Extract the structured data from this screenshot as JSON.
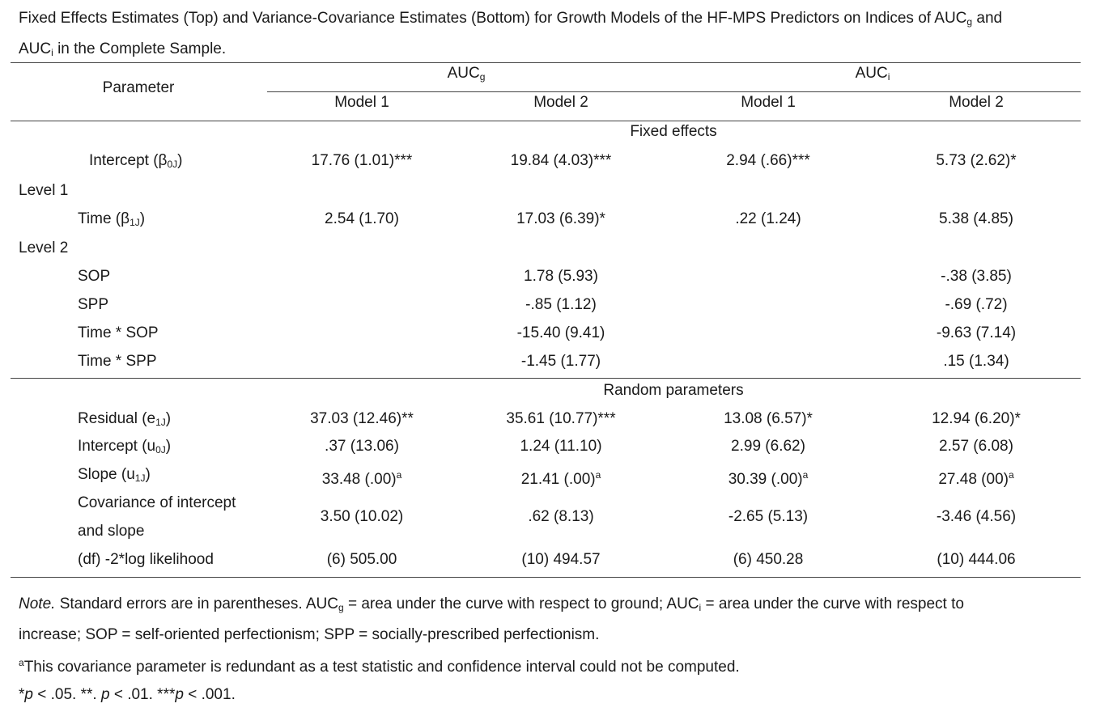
{
  "caption": {
    "part1": "Fixed Effects Estimates (Top) and Variance-Covariance Estimates (Bottom) for Growth Models of the HF-MPS Predictors on Indices of AUC",
    "sub1": "g",
    "part2": " and",
    "part3": "AUC",
    "sub2": "i",
    "part4": " in the Complete Sample."
  },
  "header": {
    "parameter": "Parameter",
    "group_g": {
      "base": "AUC",
      "sub": "g"
    },
    "group_i": {
      "base": "AUC",
      "sub": "i"
    },
    "model1": "Model 1",
    "model2": "Model 2"
  },
  "sections": {
    "fixed": "Fixed effects",
    "random": "Random parameters",
    "level1": "Level 1",
    "level2": "Level 2"
  },
  "rows": [
    {
      "label": "Intercept (β",
      "label_sub": "0J",
      "label_end": ")",
      "cells": [
        "17.76 (1.01)***",
        "19.84 (4.03)***",
        "2.94 (.66)***",
        "5.73 (2.62)*"
      ]
    },
    {
      "label": "Time (β",
      "label_sub": "1J",
      "label_end": ")",
      "cells": [
        "2.54 (1.70)",
        "17.03 (6.39)*",
        ".22 (1.24)",
        "5.38 (4.85)"
      ]
    },
    {
      "label": "SOP",
      "cells": [
        "",
        "1.78 (5.93)",
        "",
        "-.38 (3.85)"
      ]
    },
    {
      "label": "SPP",
      "cells": [
        "",
        "-.85 (1.12)",
        "",
        "-.69 (.72)"
      ]
    },
    {
      "label": "Time * SOP",
      "cells": [
        "",
        "-15.40 (9.41)",
        "",
        "-9.63 (7.14)"
      ]
    },
    {
      "label": "Time * SPP",
      "cells": [
        "",
        "-1.45 (1.77)",
        "",
        ".15 (1.34)"
      ]
    },
    {
      "label": "Residual (e",
      "label_sub": "1J",
      "label_end": ")",
      "cells": [
        "37.03 (12.46)**",
        "35.61 (10.77)***",
        "13.08 (6.57)*",
        "12.94 (6.20)*"
      ]
    },
    {
      "label": "Intercept (u",
      "label_sub": "0J",
      "label_end": ")",
      "cells": [
        ".37 (13.06)",
        "1.24 (11.10)",
        "2.99 (6.62)",
        "2.57 (6.08)"
      ]
    },
    {
      "label": "Slope (u",
      "label_sub": "1J",
      "label_end": ")",
      "cells": [
        "33.48 (.00)",
        "21.41 (.00)",
        "30.39 (.00)",
        "27.48 (00)"
      ],
      "cell_sup": "a"
    },
    {
      "label": "Covariance of intercept",
      "label2": "and slope",
      "cells": [
        "3.50 (10.02)",
        ".62 (8.13)",
        "-2.65 (5.13)",
        "-3.46 (4.56)"
      ]
    },
    {
      "label": "(df) -2*log likelihood",
      "cells": [
        "(6) 505.00",
        "(10) 494.57",
        "(6) 450.28",
        "(10) 444.06"
      ]
    }
  ],
  "notes": {
    "note_label": "Note.",
    "note_a": " Standard errors are in parentheses. AUC",
    "note_sub_g": "g",
    "note_b": " = area under the curve with respect to ground; AUC",
    "note_sub_i": "i",
    "note_c": " = area under the curve with respect to",
    "note_d": "increase; SOP = self-oriented perfectionism; SPP = socially-prescribed perfectionism.",
    "footnote_sup": "a",
    "footnote_text": "This covariance parameter is redundant as a test statistic and confidence interval could not be computed.",
    "sig_1": "*",
    "sig_p1": "p",
    "sig_2": " < .05. **. ",
    "sig_p2": "p",
    "sig_3": " < .01. ***",
    "sig_p3": "p",
    "sig_4": " < .001."
  }
}
